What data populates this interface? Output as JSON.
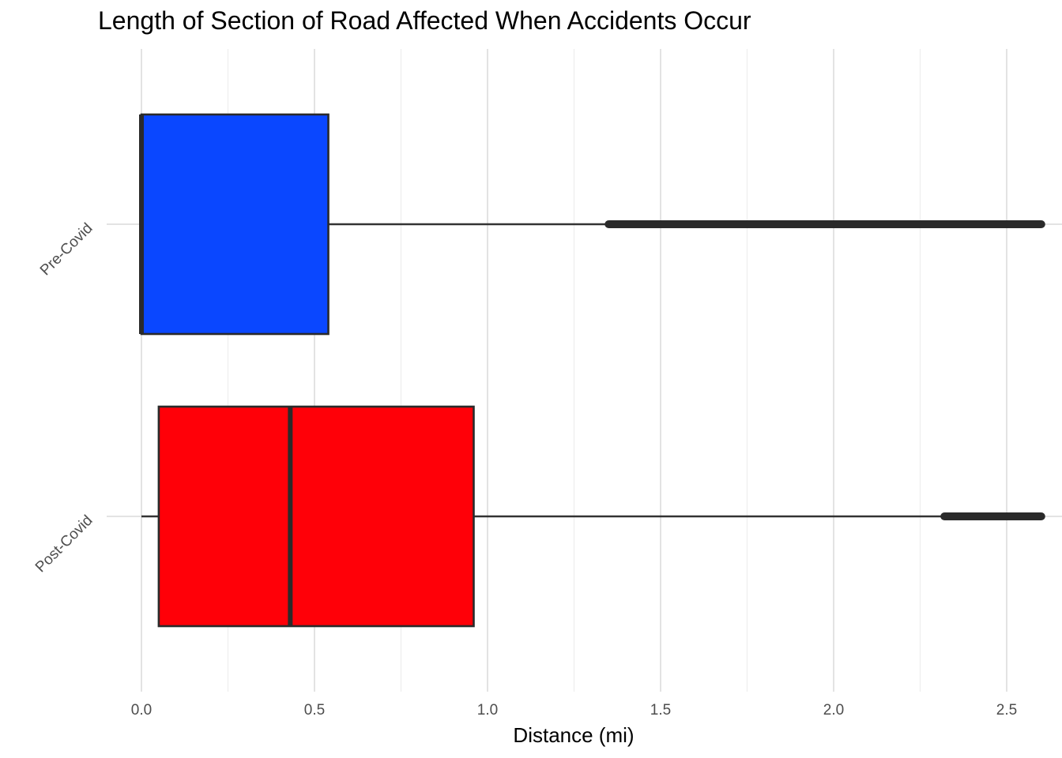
{
  "chart_data": {
    "type": "boxplot",
    "orientation": "horizontal",
    "title": "Length of Section of Road Affected When Accidents Occur",
    "xlabel": "Distance (mi)",
    "ylabel": "",
    "xlim": [
      0,
      2.6
    ],
    "x_ticks": [
      0.0,
      0.5,
      1.0,
      1.5,
      2.0,
      2.5
    ],
    "x_tick_labels": [
      "0.0",
      "0.5",
      "1.0",
      "1.5",
      "2.0",
      "2.5"
    ],
    "grid": "vertical major and minor",
    "legend": "none",
    "categories": [
      "Pre-Covid",
      "Post-Covid"
    ],
    "boxes": [
      {
        "category": "Pre-Covid",
        "min": 0.0,
        "q1": 0.0,
        "median": 0.0,
        "q3": 0.54,
        "whisker_high": 1.35,
        "outliers_from": 1.35,
        "outliers_to": 2.6,
        "fill": "#0a47ff"
      },
      {
        "category": "Post-Covid",
        "min": 0.0,
        "q1": 0.05,
        "median": 0.43,
        "q3": 0.96,
        "whisker_high": 2.32,
        "outliers_from": 2.32,
        "outliers_to": 2.6,
        "fill": "#ff0008"
      }
    ]
  }
}
